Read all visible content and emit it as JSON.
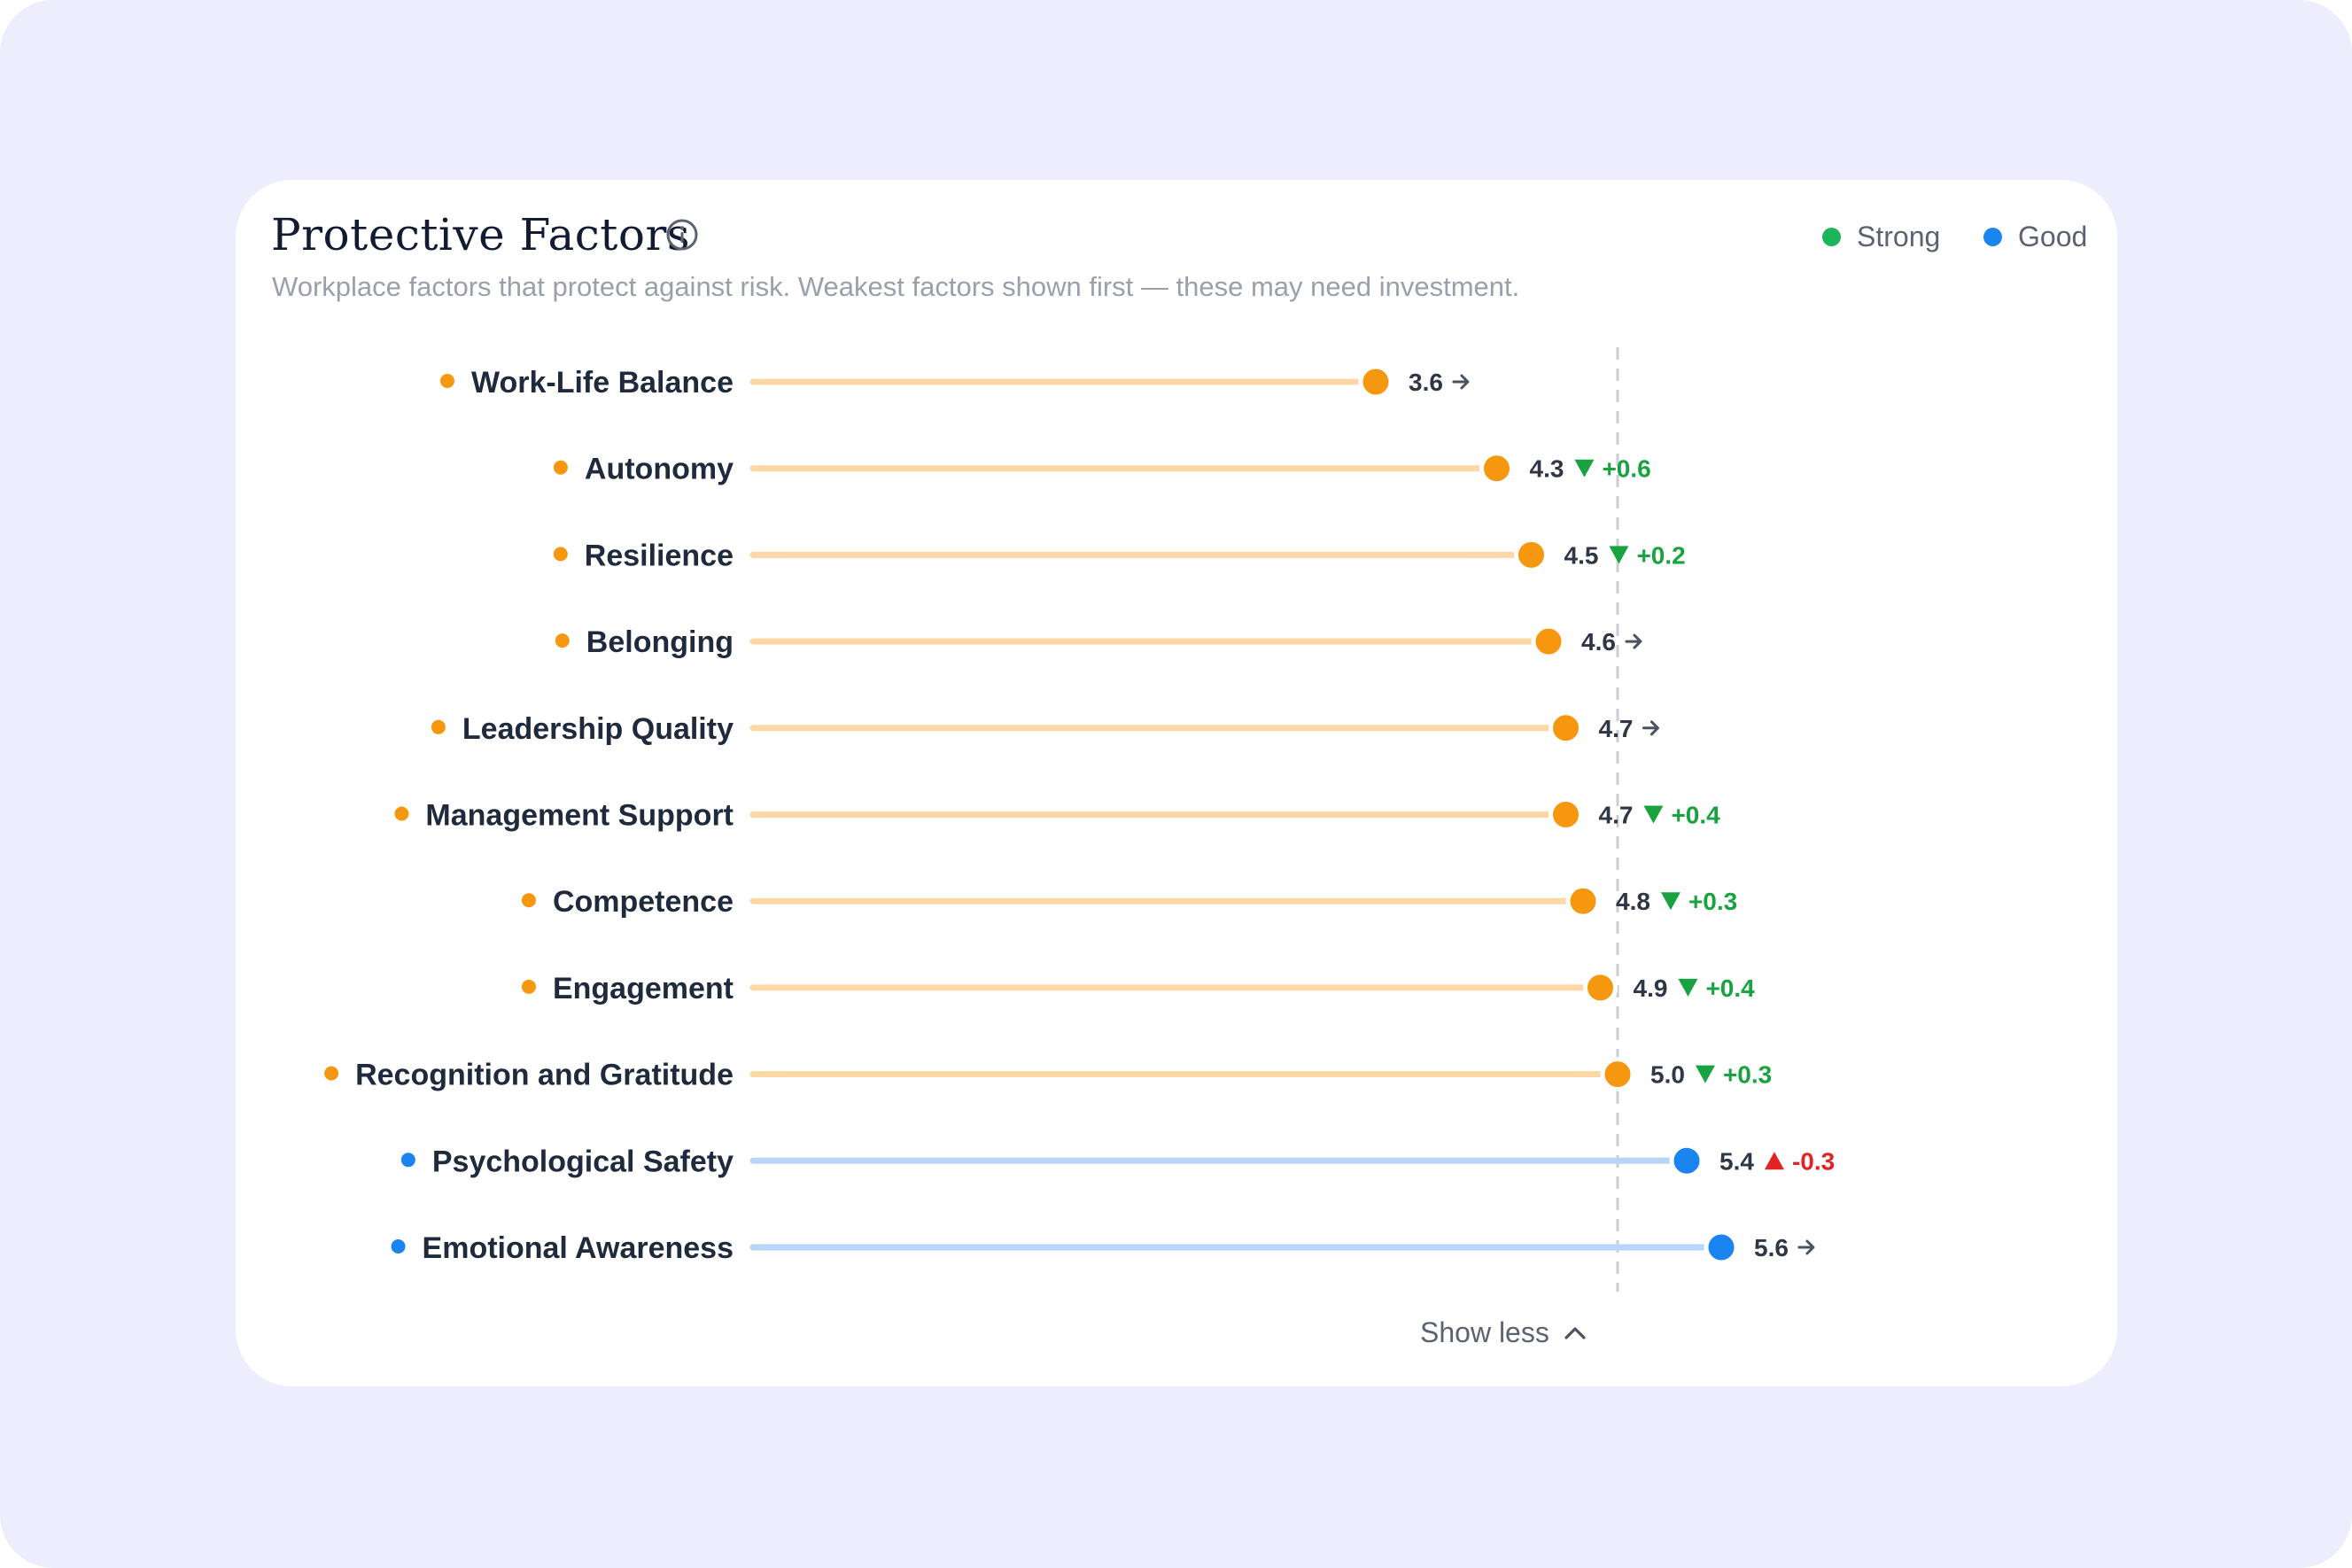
{
  "card": {
    "title": "Protective Factors",
    "subtitle": "Workplace factors that protect against risk. Weakest factors shown first — these may need investment.",
    "info_icon": "info-icon",
    "show_less_label": "Show less",
    "show_less_icon": "chevron-up-icon"
  },
  "legend": [
    {
      "label": "Strong",
      "color": "#1db45a"
    },
    {
      "label": "Good",
      "color": "#1a84f0"
    }
  ],
  "colors": {
    "moderate": "#f5970f",
    "moderate_track": "#fdd8a6",
    "good": "#1a84f0",
    "good_track": "#b8d5f8",
    "positive_change": "#18a340",
    "negative_change": "#e02424",
    "neutral_arrow": "#4b5260",
    "benchmark_line": "#c9ccd2"
  },
  "chart_data": {
    "type": "dot",
    "benchmark": 5.0,
    "xlim": [
      0,
      7
    ],
    "items": [
      {
        "label": "Work-Life Balance",
        "value": 3.6,
        "level": "moderate",
        "trend": "flat",
        "change": ""
      },
      {
        "label": "Autonomy",
        "value": 4.3,
        "level": "moderate",
        "trend": "down",
        "change": "+0.6"
      },
      {
        "label": "Resilience",
        "value": 4.5,
        "level": "moderate",
        "trend": "down",
        "change": "+0.2"
      },
      {
        "label": "Belonging",
        "value": 4.6,
        "level": "moderate",
        "trend": "flat",
        "change": ""
      },
      {
        "label": "Leadership Quality",
        "value": 4.7,
        "level": "moderate",
        "trend": "flat",
        "change": ""
      },
      {
        "label": "Management Support",
        "value": 4.7,
        "level": "moderate",
        "trend": "down",
        "change": "+0.4"
      },
      {
        "label": "Competence",
        "value": 4.8,
        "level": "moderate",
        "trend": "down",
        "change": "+0.3"
      },
      {
        "label": "Engagement",
        "value": 4.9,
        "level": "moderate",
        "trend": "down",
        "change": "+0.4"
      },
      {
        "label": "Recognition and Gratitude",
        "value": 5.0,
        "level": "moderate",
        "trend": "down",
        "change": "+0.3"
      },
      {
        "label": "Psychological Safety",
        "value": 5.4,
        "level": "good",
        "trend": "up",
        "change": "-0.3"
      },
      {
        "label": "Emotional Awareness",
        "value": 5.6,
        "level": "good",
        "trend": "flat",
        "change": ""
      }
    ]
  }
}
